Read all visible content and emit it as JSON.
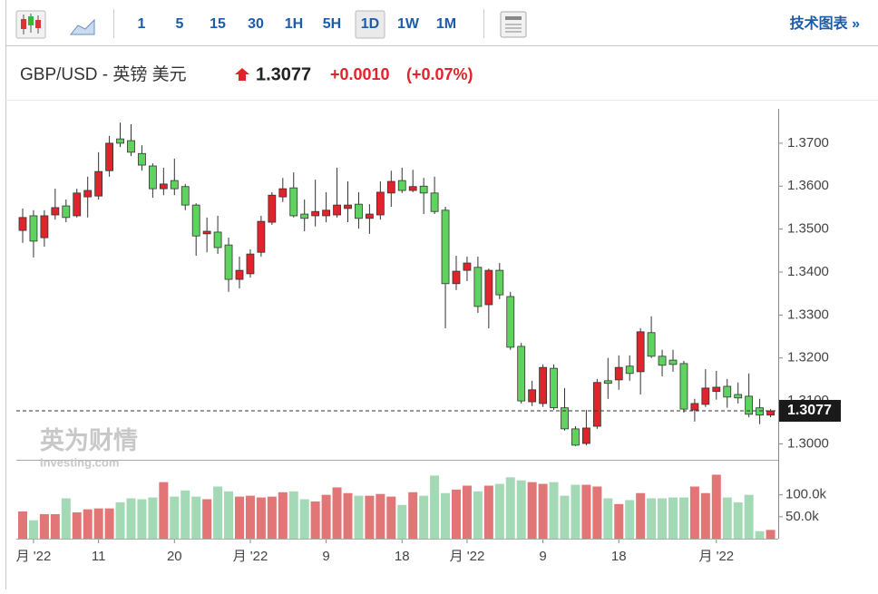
{
  "toolbar": {
    "intervals": [
      "1",
      "5",
      "15",
      "30",
      "1H",
      "5H",
      "1D",
      "1W",
      "1M"
    ],
    "active": "1D",
    "link": "技术图表 »"
  },
  "chart_data": {
    "type": "candlestick",
    "title": "GBP/USD - 英镑 美元",
    "price": "1.3077",
    "change": "+0.0010",
    "change_pct": "(+0.07%)",
    "watermark": [
      "英为财情",
      "Investing.com"
    ],
    "up_color": "#e0242b",
    "down_color": "#5fd35f",
    "volume_up_color": "#e27575",
    "volume_down_color": "#a3d9b5",
    "last": 1.3077,
    "last_label": "1.3077",
    "ylim": [
      1.2963,
      1.378
    ],
    "yticks": [
      {
        "value": 1.3,
        "label": "1.3000"
      },
      {
        "value": 1.31,
        "label": "1.3100"
      },
      {
        "value": 1.32,
        "label": "1.3200"
      },
      {
        "value": 1.33,
        "label": "1.3300"
      },
      {
        "value": 1.34,
        "label": "1.3400"
      },
      {
        "value": 1.35,
        "label": "1.3500"
      },
      {
        "value": 1.36,
        "label": "1.3600"
      },
      {
        "value": 1.37,
        "label": "1.3700"
      }
    ],
    "vlim": [
      0,
      180000
    ],
    "vticks": [
      {
        "value": 50000,
        "label": "50.0k"
      },
      {
        "value": 100000,
        "label": "100.0k"
      }
    ],
    "xticks": [
      {
        "value": 1,
        "label": "月 '22"
      },
      {
        "value": 7,
        "label": "11"
      },
      {
        "value": 14,
        "label": "20"
      },
      {
        "value": 21,
        "label": "月 '22"
      },
      {
        "value": 28,
        "label": "9"
      },
      {
        "value": 35,
        "label": "18"
      },
      {
        "value": 41,
        "label": "月 '22"
      },
      {
        "value": 48,
        "label": "9"
      },
      {
        "value": 55,
        "label": "18"
      },
      {
        "value": 64,
        "label": "月 '22"
      }
    ],
    "open": [
      1.3497,
      1.3531,
      1.348,
      1.3533,
      1.3554,
      1.3531,
      1.3575,
      1.3577,
      1.3636,
      1.371,
      1.3706,
      1.3676,
      1.3647,
      1.3594,
      1.3613,
      1.3599,
      1.3556,
      1.3489,
      1.3493,
      1.3463,
      1.3383,
      1.3396,
      1.3446,
      1.3516,
      1.3575,
      1.3596,
      1.3535,
      1.3531,
      1.3531,
      1.3533,
      1.3548,
      1.3558,
      1.3525,
      1.3533,
      1.3584,
      1.3613,
      1.359,
      1.36,
      1.3584,
      1.3544,
      1.3373,
      1.3404,
      1.3411,
      1.3324,
      1.3404,
      1.3343,
      1.3227,
      1.3098,
      1.3094,
      1.3176,
      1.3084,
      1.3035,
      1.3001,
      1.3041,
      1.3147,
      1.3149,
      1.3181,
      1.3168,
      1.3259,
      1.3204,
      1.3195,
      1.3187,
      1.3079,
      1.3092,
      1.3122,
      1.3134,
      1.3115,
      1.3111,
      1.3084,
      1.3067
    ],
    "high": [
      1.3548,
      1.3544,
      1.3544,
      1.3594,
      1.3569,
      1.3594,
      1.3622,
      1.3679,
      1.3717,
      1.3748,
      1.3744,
      1.3695,
      1.3653,
      1.3643,
      1.3664,
      1.3605,
      1.356,
      1.3527,
      1.3531,
      1.348,
      1.3436,
      1.3453,
      1.3531,
      1.3586,
      1.3619,
      1.3632,
      1.3569,
      1.3615,
      1.3586,
      1.3643,
      1.3611,
      1.3586,
      1.3558,
      1.3611,
      1.3636,
      1.3643,
      1.3638,
      1.3619,
      1.3622,
      1.3552,
      1.3438,
      1.3436,
      1.3436,
      1.3408,
      1.3421,
      1.3354,
      1.3235,
      1.3147,
      1.3185,
      1.3185,
      1.313,
      1.3041,
      1.3079,
      1.3151,
      1.32,
      1.3206,
      1.3206,
      1.3269,
      1.3297,
      1.3219,
      1.3219,
      1.3193,
      1.3105,
      1.3174,
      1.317,
      1.3151,
      1.3143,
      1.3164,
      1.3105,
      1.3081
    ],
    "low": [
      1.3468,
      1.3434,
      1.3459,
      1.3522,
      1.3516,
      1.3527,
      1.3527,
      1.3569,
      1.3622,
      1.3691,
      1.367,
      1.3636,
      1.3573,
      1.3579,
      1.3579,
      1.3544,
      1.3438,
      1.3446,
      1.3442,
      1.3354,
      1.3362,
      1.3387,
      1.3436,
      1.351,
      1.3563,
      1.3527,
      1.3495,
      1.3506,
      1.3516,
      1.3527,
      1.3516,
      1.3501,
      1.3489,
      1.3522,
      1.3552,
      1.3584,
      1.3586,
      1.3535,
      1.3535,
      1.3269,
      1.3358,
      1.3379,
      1.3305,
      1.3269,
      1.3337,
      1.3219,
      1.3094,
      1.3088,
      1.3086,
      1.3079,
      1.3031,
      1.2995,
      1.2997,
      1.3035,
      1.3105,
      1.3126,
      1.3147,
      1.3115,
      1.32,
      1.3157,
      1.3168,
      1.3073,
      1.3052,
      1.3086,
      1.3103,
      1.3084,
      1.3094,
      1.3062,
      1.3046,
      1.3062
    ],
    "close": [
      1.3527,
      1.3472,
      1.3531,
      1.355,
      1.3527,
      1.3584,
      1.359,
      1.3634,
      1.37,
      1.37,
      1.3679,
      1.3649,
      1.3594,
      1.3605,
      1.3594,
      1.3556,
      1.3484,
      1.3495,
      1.3457,
      1.3383,
      1.3404,
      1.3442,
      1.3518,
      1.3579,
      1.3594,
      1.3531,
      1.3525,
      1.3541,
      1.3544,
      1.3556,
      1.3556,
      1.3525,
      1.3535,
      1.3586,
      1.3611,
      1.359,
      1.3599,
      1.3584,
      1.3541,
      1.3373,
      1.3402,
      1.3421,
      1.332,
      1.3404,
      1.3347,
      1.3225,
      1.31,
      1.3126,
      1.3178,
      1.3084,
      1.3035,
      1.2997,
      1.3037,
      1.3143,
      1.3141,
      1.3178,
      1.3164,
      1.3261,
      1.3204,
      1.3183,
      1.3185,
      1.3081,
      1.3094,
      1.313,
      1.3132,
      1.3109,
      1.3107,
      1.3069,
      1.3067,
      1.3077
    ],
    "volume": [
      62000,
      42000,
      56000,
      56000,
      92000,
      60000,
      67000,
      69000,
      69000,
      83000,
      92000,
      90000,
      94000,
      129000,
      96000,
      110000,
      96000,
      90000,
      119000,
      108000,
      96000,
      98000,
      94000,
      96000,
      106000,
      108000,
      90000,
      85000,
      100000,
      117000,
      104000,
      98000,
      98000,
      102000,
      96000,
      77000,
      106000,
      98000,
      144000,
      104000,
      112000,
      121000,
      108000,
      121000,
      125000,
      140000,
      133000,
      129000,
      125000,
      129000,
      98000,
      123000,
      123000,
      119000,
      92000,
      79000,
      88000,
      104000,
      92000,
      92000,
      94000,
      94000,
      119000,
      104000,
      146000,
      94000,
      83000,
      100000,
      17000,
      20000
    ]
  }
}
